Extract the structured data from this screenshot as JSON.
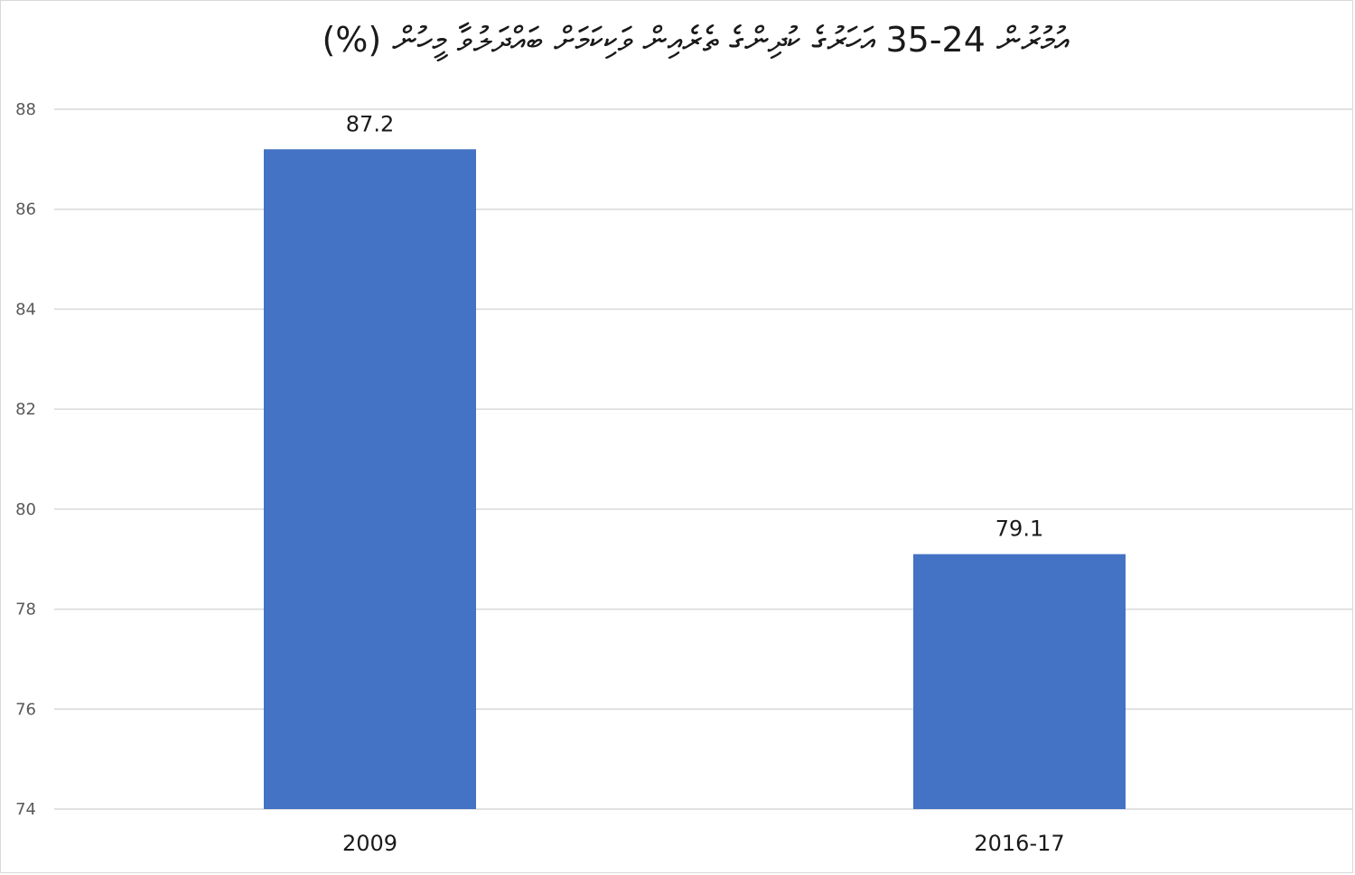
{
  "chart_data": {
    "type": "bar",
    "title": "އުމުރުން 24-35 އަހަރުގެ ކުދިންގެ ތެރެއިން ވަކިކަމަށް ބައްދަލުވާ މީހުން (%)",
    "categories": [
      "2009",
      "2016-17"
    ],
    "values": [
      87.2,
      79.1
    ],
    "data_labels": [
      "87.2",
      "79.1"
    ],
    "ylim": [
      74,
      88
    ],
    "yticks": [
      74,
      76,
      78,
      80,
      82,
      84,
      86,
      88
    ],
    "ytick_labels": [
      "74",
      "76",
      "78",
      "80",
      "82",
      "84",
      "86",
      "88"
    ],
    "grid": true,
    "legend": "none",
    "bar_color": "#4472C4",
    "grid_color": "#d9d9d9"
  }
}
